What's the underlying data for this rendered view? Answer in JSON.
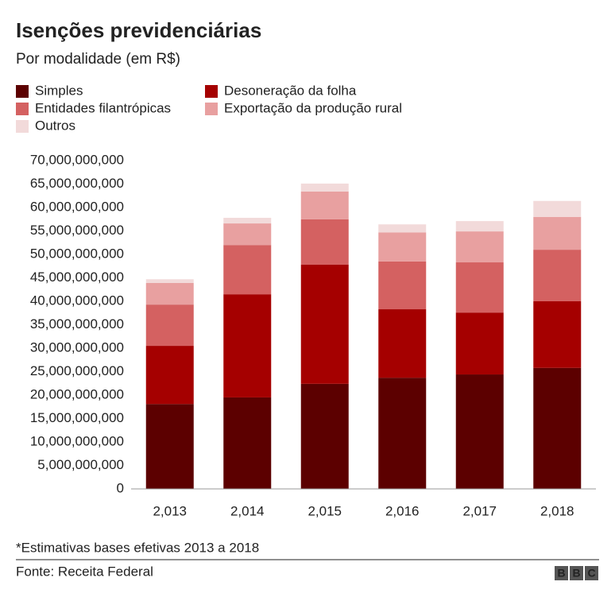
{
  "chart_data": {
    "type": "stacked_bar",
    "title": "Isenções previdenciárias",
    "subtitle": "Por modalidade (em R$)",
    "categories": [
      "2,013",
      "2,014",
      "2,015",
      "2,016",
      "2,017",
      "2,018"
    ],
    "series": [
      {
        "name": "Simples",
        "color": "#5c0000",
        "values": [
          18100000000,
          19500000000,
          22400000000,
          23700000000,
          24400000000,
          25800000000
        ]
      },
      {
        "name": "Desoneração da folha",
        "color": "#a50000",
        "values": [
          12400000000,
          22000000000,
          25400000000,
          14600000000,
          13200000000,
          14200000000
        ]
      },
      {
        "name": "Entidades filantrópicas",
        "color": "#d46161",
        "values": [
          8800000000,
          10500000000,
          9700000000,
          10200000000,
          10700000000,
          11000000000
        ]
      },
      {
        "name": "Exportação da produção rural",
        "color": "#e8a0a0",
        "values": [
          4600000000,
          4600000000,
          5900000000,
          6200000000,
          6600000000,
          7000000000
        ]
      },
      {
        "name": "Outros",
        "color": "#f2dada",
        "values": [
          800000000,
          1200000000,
          1700000000,
          1700000000,
          2200000000,
          3400000000
        ]
      }
    ],
    "ylim": [
      0,
      70000000000
    ],
    "yticks": [
      0,
      {
        "value": 5000000000,
        "label": "5,000,000,000"
      },
      {
        "value": 10000000000,
        "label": "10,000,000,000"
      },
      {
        "value": 15000000000,
        "label": "15,000,000,000"
      },
      {
        "value": 20000000000,
        "label": "20,000,000,000"
      },
      {
        "value": 25000000000,
        "label": "25,000,000,000"
      },
      {
        "value": 30000000000,
        "label": "30,000,000,000"
      },
      {
        "value": 35000000000,
        "label": "35,000,000,000"
      },
      {
        "value": 40000000000,
        "label": "40,000,000,000"
      },
      {
        "value": 45000000000,
        "label": "45,000,000,000"
      },
      {
        "value": 50000000000,
        "label": "50,000,000,000"
      },
      {
        "value": 55000000000,
        "label": "55,000,000,000"
      },
      {
        "value": 60000000000,
        "label": "60,000,000,000"
      },
      {
        "value": 65000000000,
        "label": "65,000,000,000"
      },
      {
        "value": 70000000000,
        "label": "70,000,000,000"
      }
    ],
    "grid": false,
    "note": "*Estimativas bases efetivas 2013 a 2018",
    "source": "Fonte: Receita Federal",
    "logo": "BBC"
  }
}
